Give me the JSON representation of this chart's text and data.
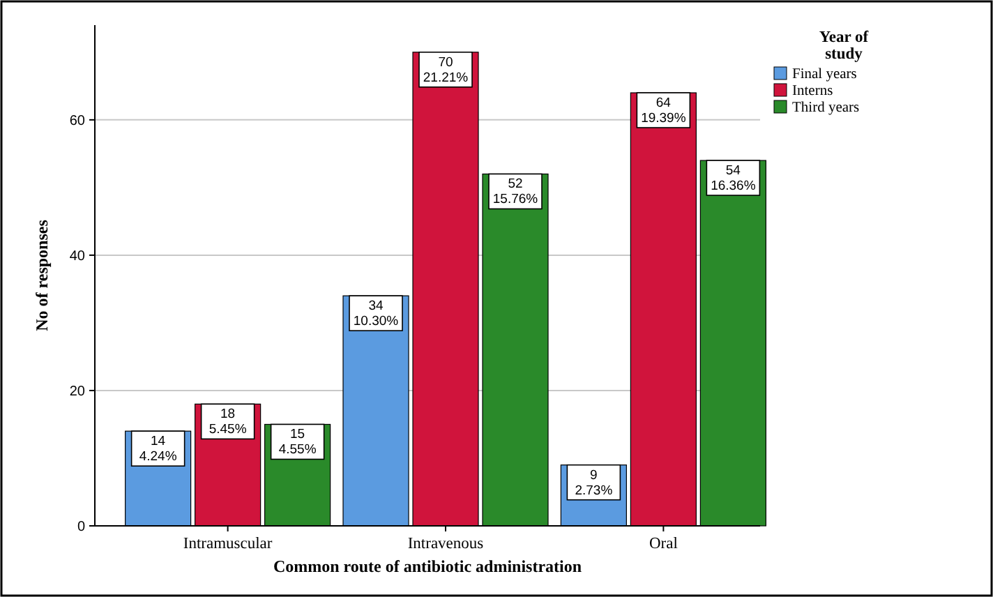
{
  "chart_data": {
    "type": "bar",
    "xlabel": "Common route of antibiotic administration",
    "ylabel": "No of responses",
    "legend_title": "Year of study",
    "categories": [
      "Intramuscular",
      "Intravenous",
      "Oral"
    ],
    "series": [
      {
        "name": "Final years",
        "color": "#5b9be0",
        "values": [
          14,
          34,
          9
        ],
        "value_labels": [
          "14\n4.24%",
          "34\n10.30%",
          "9\n2.73%"
        ]
      },
      {
        "name": "Interns",
        "color": "#d0143c",
        "values": [
          18,
          70,
          64
        ],
        "value_labels": [
          "18\n5.45%",
          "70\n21.21%",
          "64\n19.39%"
        ]
      },
      {
        "name": "Third years",
        "color": "#2a8a2a",
        "values": [
          15,
          52,
          54
        ],
        "value_labels": [
          "15\n4.55%",
          "52\n15.76%",
          "54\n16.36%"
        ]
      }
    ],
    "ylim": [
      0,
      74
    ],
    "yticks": [
      0,
      20,
      40,
      60
    ],
    "grid": "y",
    "legend": "top right"
  }
}
